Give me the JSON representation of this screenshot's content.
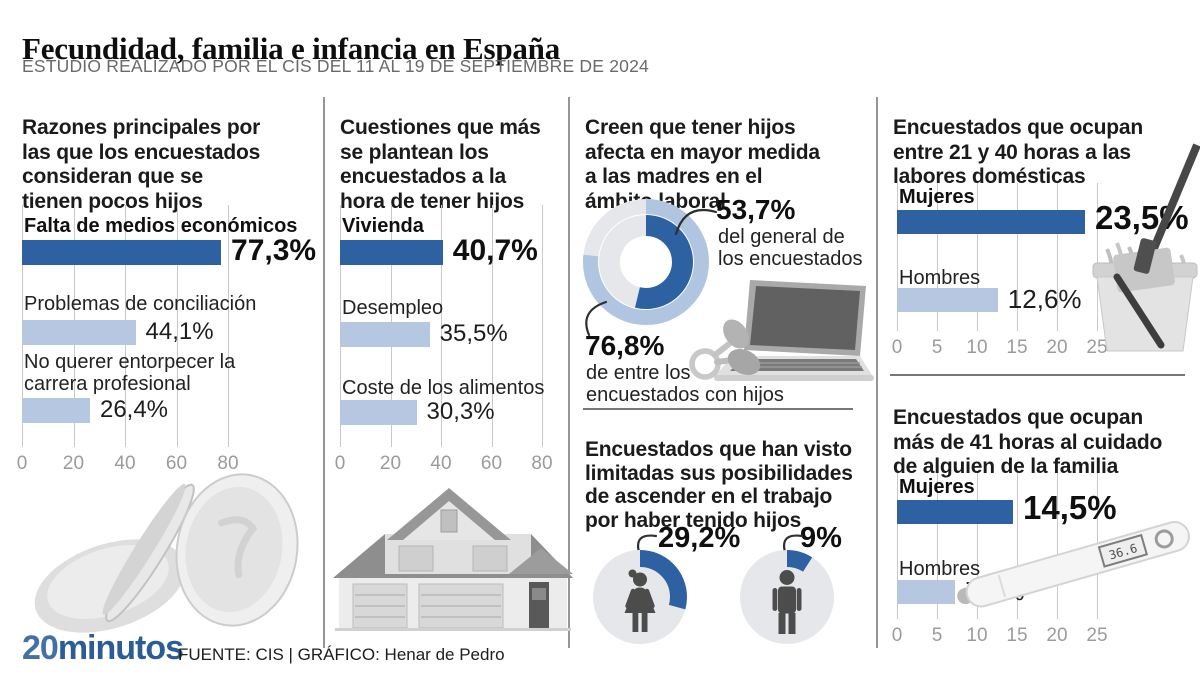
{
  "title": "Fecundidad, familia e infancia en España",
  "subtitle": "ESTUDIO REALIZADO POR EL CIS DEL 11 AL 19 DE SEPTIEMBRE DE 2024",
  "footer": {
    "logo_20": "20",
    "logo_minutos": "minutos",
    "credits": "FUENTE: CIS  |  GRÁFICO: Henar de Pedro"
  },
  "colors": {
    "dark_blue": "#2d61a1",
    "light_blue": "#b6c8e1",
    "ring_light_blue": "#b0c6e0",
    "ring_gray": "#e5e7ea",
    "grid": "#c9c9c9",
    "axis_text": "#9b9b9b",
    "logo_20": "#4470a8",
    "logo_minutos": "#2b5c97"
  },
  "illustrations": {
    "thermometer_reading": "36.6"
  },
  "chart_data": [
    {
      "id": "reasons-few-children",
      "type": "bar",
      "orientation": "horizontal",
      "title": "Razones principales por\nlas que los encuestados\nconsideran que se\ntienen pocos hijos",
      "categories": [
        "Falta de medios económicos",
        "Problemas de conciliación",
        "No querer entorpecer la carrera profesional"
      ],
      "values": [
        77.3,
        44.1,
        26.4
      ],
      "labels": [
        "77,3%",
        "44,1%",
        "26,4%"
      ],
      "xlim": [
        0,
        100
      ],
      "ticks": [
        0,
        20,
        40,
        60,
        80
      ],
      "grid": true,
      "emphasis_index": 0
    },
    {
      "id": "concerns-having-children",
      "type": "bar",
      "orientation": "horizontal",
      "title": "Cuestiones que más\nse plantean los\nencuestados a la\nhora de tener hijos",
      "categories": [
        "Vivienda",
        "Desempleo",
        "Coste de los alimentos"
      ],
      "values": [
        40.7,
        35.5,
        30.3
      ],
      "labels": [
        "40,7%",
        "35,5%",
        "30,3%"
      ],
      "xlim": [
        0,
        100
      ],
      "ticks": [
        0,
        20,
        40,
        60,
        80
      ],
      "grid": true,
      "emphasis_index": 0
    },
    {
      "id": "children-affect-mothers",
      "type": "donut",
      "title": "Creen que tener hijos\nafecta en mayor medida\na las madres en el\námbito laboral",
      "rings": [
        {
          "name": "encuestados con hijos",
          "value": 76.8,
          "label": "76,8%",
          "caption": "de entre los\nencuestados con hijos"
        },
        {
          "name": "general de los encuestados",
          "value": 53.7,
          "label": "53,7%",
          "caption": "del general de\nlos encuestados"
        }
      ]
    },
    {
      "id": "promotion-limited",
      "type": "pictogram-donut",
      "title": "Encuestados que han visto\nlimitadas sus posibilidades\nde ascender en el trabajo\npor haber tenido hijos",
      "series": [
        {
          "name": "Mujeres",
          "value": 29.2,
          "label": "29,2%"
        },
        {
          "name": "Hombres",
          "value": 9,
          "label": "9%"
        }
      ]
    },
    {
      "id": "housework-21-40-hours",
      "type": "bar",
      "orientation": "horizontal",
      "title": "Encuestados que ocupan\nentre 21 y 40 horas a las\nlabores domésticas",
      "categories": [
        "Mujeres",
        "Hombres"
      ],
      "values": [
        23.5,
        12.6
      ],
      "labels": [
        "23,5%",
        "12,6%"
      ],
      "xlim": [
        0,
        26
      ],
      "ticks": [
        0,
        5,
        10,
        15,
        20,
        25
      ],
      "grid": true,
      "emphasis_index": 0
    },
    {
      "id": "family-care-41-hours",
      "type": "bar",
      "orientation": "horizontal",
      "title": "Encuestados que ocupan\nmás de 41 horas al cuidado\nde alguien de la familia",
      "categories": [
        "Mujeres",
        "Hombres"
      ],
      "values": [
        14.5,
        7.3
      ],
      "labels": [
        "14,5%",
        "7,3%"
      ],
      "xlim": [
        0,
        26
      ],
      "ticks": [
        0,
        5,
        10,
        15,
        20,
        25
      ],
      "grid": true,
      "emphasis_index": 0
    }
  ]
}
